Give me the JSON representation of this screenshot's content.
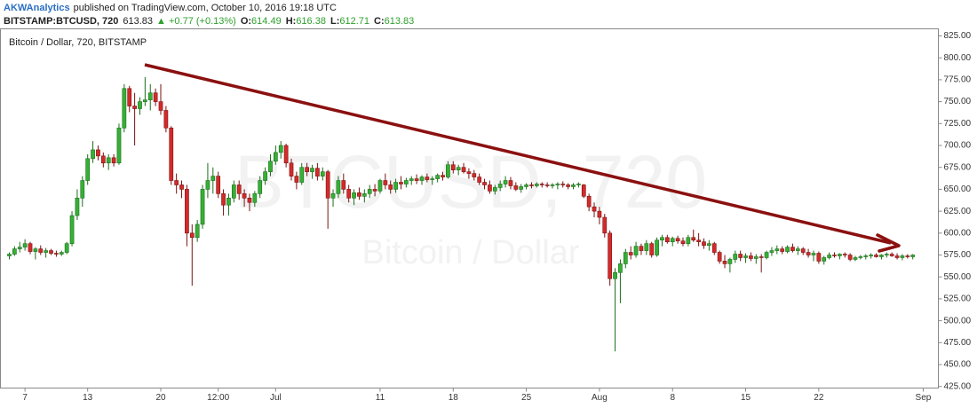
{
  "header": {
    "publisher": "AKWAnalytics",
    "published": "published on TradingView.com, October 10, 2016 19:18 UTC",
    "symbol": "BITSTAMP:BTCUSD, 720",
    "last": "613.83",
    "change": "▲ +0.77 (+0.13%)",
    "open_label": "O:",
    "open": "614.49",
    "high_label": "H:",
    "high": "616.38",
    "low_label": "L:",
    "low": "612.71",
    "close_label": "C:",
    "close": "613.83"
  },
  "chart_data": {
    "type": "candlestick",
    "title": "Bitcoin / Dollar, 720, BITSTAMP",
    "watermark": "BTCUSD, 720",
    "watermark_subtitle": "Bitcoin / Dollar",
    "up_color": "#35b035",
    "up_border": "#1c6e1c",
    "down_color": "#d42a2a",
    "down_border": "#7a1212",
    "ylim": [
      423.2,
      833.1
    ],
    "xlim": [
      -1.7,
      177.9
    ],
    "grid": false,
    "yticks": [
      {
        "value": 425,
        "label": "425.00"
      },
      {
        "value": 450,
        "label": "450.00"
      },
      {
        "value": 475,
        "label": "475.00"
      },
      {
        "value": 500,
        "label": "500.00"
      },
      {
        "value": 525,
        "label": "525.00"
      },
      {
        "value": 550,
        "label": "550.00"
      },
      {
        "value": 575,
        "label": "575.00"
      },
      {
        "value": 600,
        "label": "600.00"
      },
      {
        "value": 625,
        "label": "625.00"
      },
      {
        "value": 650,
        "label": "650.00"
      },
      {
        "value": 675,
        "label": "675.00"
      },
      {
        "value": 700,
        "label": "700.00"
      },
      {
        "value": 725,
        "label": "725.00"
      },
      {
        "value": 750,
        "label": "750.00"
      },
      {
        "value": 775,
        "label": "775.00"
      },
      {
        "value": 800,
        "label": "800.00"
      },
      {
        "value": 825,
        "label": "825.00"
      }
    ],
    "xticks": [
      {
        "value": 3,
        "label": "7"
      },
      {
        "value": 15,
        "label": "13"
      },
      {
        "value": 29,
        "label": "20"
      },
      {
        "value": 40,
        "label": "12:00"
      },
      {
        "value": 51,
        "label": "Jul"
      },
      {
        "value": 71,
        "label": "11"
      },
      {
        "value": 85,
        "label": "18"
      },
      {
        "value": 99,
        "label": "25"
      },
      {
        "value": 113,
        "label": "Aug"
      },
      {
        "value": 127,
        "label": "8"
      },
      {
        "value": 141,
        "label": "15"
      },
      {
        "value": 155,
        "label": "22"
      },
      {
        "value": 175,
        "label": "Sep"
      }
    ],
    "ohlc": [
      [
        574,
        578,
        570,
        576
      ],
      [
        576,
        585,
        574,
        582
      ],
      [
        582,
        590,
        578,
        584
      ],
      [
        584,
        593,
        580,
        588
      ],
      [
        588,
        590,
        576,
        579
      ],
      [
        579,
        584,
        570,
        582
      ],
      [
        582,
        586,
        575,
        578
      ],
      [
        578,
        583,
        572,
        580
      ],
      [
        580,
        582,
        575,
        577
      ],
      [
        577,
        580,
        573,
        576
      ],
      [
        576,
        580,
        574,
        578
      ],
      [
        578,
        590,
        576,
        588
      ],
      [
        588,
        625,
        585,
        620
      ],
      [
        620,
        650,
        615,
        640
      ],
      [
        640,
        665,
        630,
        660
      ],
      [
        660,
        690,
        655,
        685
      ],
      [
        685,
        705,
        680,
        695
      ],
      [
        695,
        700,
        683,
        688
      ],
      [
        688,
        692,
        675,
        680
      ],
      [
        680,
        690,
        672,
        686
      ],
      [
        686,
        690,
        676,
        680
      ],
      [
        680,
        725,
        678,
        720
      ],
      [
        720,
        770,
        715,
        765
      ],
      [
        765,
        768,
        738,
        745
      ],
      [
        745,
        760,
        700,
        742
      ],
      [
        742,
        755,
        735,
        750
      ],
      [
        750,
        778,
        745,
        752
      ],
      [
        752,
        770,
        740,
        760
      ],
      [
        760,
        765,
        745,
        750
      ],
      [
        750,
        770,
        735,
        740
      ],
      [
        740,
        745,
        715,
        720
      ],
      [
        720,
        722,
        655,
        660
      ],
      [
        660,
        668,
        645,
        655
      ],
      [
        655,
        660,
        640,
        650
      ],
      [
        650,
        655,
        585,
        600
      ],
      [
        600,
        610,
        540,
        595
      ],
      [
        595,
        615,
        590,
        610
      ],
      [
        610,
        655,
        605,
        650
      ],
      [
        650,
        680,
        640,
        660
      ],
      [
        660,
        675,
        645,
        665
      ],
      [
        665,
        670,
        640,
        645
      ],
      [
        645,
        650,
        620,
        632
      ],
      [
        632,
        645,
        620,
        640
      ],
      [
        640,
        660,
        635,
        655
      ],
      [
        655,
        660,
        638,
        645
      ],
      [
        645,
        650,
        630,
        640
      ],
      [
        640,
        645,
        625,
        635
      ],
      [
        635,
        648,
        630,
        645
      ],
      [
        645,
        665,
        640,
        660
      ],
      [
        660,
        675,
        655,
        670
      ],
      [
        670,
        690,
        665,
        682
      ],
      [
        682,
        700,
        678,
        692
      ],
      [
        692,
        705,
        685,
        700
      ],
      [
        700,
        702,
        675,
        680
      ],
      [
        680,
        685,
        660,
        665
      ],
      [
        665,
        670,
        650,
        658
      ],
      [
        658,
        680,
        655,
        675
      ],
      [
        675,
        680,
        665,
        670
      ],
      [
        670,
        678,
        662,
        674
      ],
      [
        674,
        680,
        660,
        665
      ],
      [
        665,
        675,
        660,
        670
      ],
      [
        670,
        672,
        605,
        640
      ],
      [
        640,
        650,
        630,
        645
      ],
      [
        645,
        665,
        640,
        660
      ],
      [
        660,
        668,
        645,
        650
      ],
      [
        650,
        655,
        635,
        640
      ],
      [
        640,
        650,
        632,
        646
      ],
      [
        646,
        652,
        638,
        642
      ],
      [
        642,
        650,
        635,
        645
      ],
      [
        645,
        655,
        640,
        650
      ],
      [
        650,
        656,
        642,
        648
      ],
      [
        648,
        662,
        645,
        660
      ],
      [
        660,
        668,
        650,
        655
      ],
      [
        655,
        660,
        645,
        650
      ],
      [
        650,
        662,
        646,
        658
      ],
      [
        658,
        665,
        650,
        656
      ],
      [
        656,
        663,
        652,
        660
      ],
      [
        660,
        665,
        655,
        662
      ],
      [
        662,
        667,
        656,
        660
      ],
      [
        660,
        666,
        655,
        664
      ],
      [
        664,
        668,
        658,
        661
      ],
      [
        661,
        665,
        655,
        662
      ],
      [
        662,
        668,
        658,
        666
      ],
      [
        666,
        670,
        660,
        664
      ],
      [
        664,
        682,
        662,
        678
      ],
      [
        678,
        682,
        668,
        672
      ],
      [
        672,
        678,
        666,
        675
      ],
      [
        675,
        680,
        668,
        670
      ],
      [
        670,
        674,
        662,
        668
      ],
      [
        668,
        672,
        660,
        664
      ],
      [
        664,
        668,
        655,
        658
      ],
      [
        658,
        662,
        650,
        655
      ],
      [
        655,
        660,
        645,
        648
      ],
      [
        648,
        655,
        644,
        652
      ],
      [
        652,
        660,
        648,
        656
      ],
      [
        656,
        665,
        652,
        660
      ],
      [
        660,
        664,
        650,
        654
      ],
      [
        654,
        658,
        648,
        650
      ],
      [
        650,
        656,
        646,
        653
      ],
      [
        653,
        657,
        650,
        655
      ],
      [
        655,
        658,
        651,
        654
      ],
      [
        654,
        658,
        652,
        656
      ],
      [
        656,
        658,
        652,
        655
      ],
      [
        655,
        658,
        652,
        654
      ],
      [
        654,
        657,
        651,
        655
      ],
      [
        655,
        658,
        650,
        656
      ],
      [
        656,
        659,
        652,
        655
      ],
      [
        655,
        657,
        650,
        653
      ],
      [
        653,
        657,
        650,
        655
      ],
      [
        655,
        658,
        652,
        656
      ],
      [
        655,
        656,
        640,
        642
      ],
      [
        642,
        645,
        625,
        630
      ],
      [
        630,
        635,
        618,
        625
      ],
      [
        625,
        630,
        610,
        618
      ],
      [
        618,
        622,
        595,
        600
      ],
      [
        600,
        603,
        540,
        548
      ],
      [
        548,
        560,
        465,
        555
      ],
      [
        555,
        570,
        520,
        565
      ],
      [
        565,
        582,
        560,
        578
      ],
      [
        578,
        585,
        570,
        575
      ],
      [
        575,
        590,
        572,
        585
      ],
      [
        585,
        588,
        575,
        580
      ],
      [
        580,
        592,
        575,
        588
      ],
      [
        588,
        590,
        572,
        575
      ],
      [
        575,
        595,
        573,
        592
      ],
      [
        592,
        598,
        585,
        595
      ],
      [
        595,
        598,
        588,
        590
      ],
      [
        590,
        596,
        585,
        594
      ],
      [
        594,
        597,
        588,
        591
      ],
      [
        591,
        595,
        585,
        588
      ],
      [
        588,
        598,
        585,
        595
      ],
      [
        595,
        604,
        590,
        592
      ],
      [
        592,
        600,
        585,
        590
      ],
      [
        590,
        594,
        582,
        586
      ],
      [
        586,
        592,
        580,
        588
      ],
      [
        588,
        590,
        575,
        578
      ],
      [
        578,
        580,
        565,
        568
      ],
      [
        568,
        575,
        560,
        565
      ],
      [
        565,
        572,
        555,
        570
      ],
      [
        570,
        580,
        566,
        576
      ],
      [
        576,
        580,
        568,
        572
      ],
      [
        572,
        577,
        566,
        574
      ],
      [
        574,
        578,
        568,
        571
      ],
      [
        571,
        576,
        565,
        573
      ],
      [
        573,
        576,
        555,
        572
      ],
      [
        572,
        580,
        570,
        578
      ],
      [
        578,
        584,
        574,
        580
      ],
      [
        580,
        586,
        576,
        582
      ],
      [
        582,
        585,
        576,
        579
      ],
      [
        579,
        586,
        577,
        584
      ],
      [
        584,
        588,
        578,
        580
      ],
      [
        580,
        585,
        575,
        582
      ],
      [
        582,
        584,
        575,
        578
      ],
      [
        578,
        582,
        572,
        575
      ],
      [
        575,
        580,
        568,
        577
      ],
      [
        577,
        579,
        565,
        568
      ],
      [
        568,
        574,
        564,
        572
      ],
      [
        572,
        578,
        570,
        575
      ],
      [
        575,
        578,
        572,
        574
      ],
      [
        574,
        577,
        570,
        576
      ],
      [
        576,
        578,
        572,
        575
      ],
      [
        575,
        577,
        568,
        570
      ],
      [
        570,
        574,
        568,
        572
      ],
      [
        572,
        575,
        570,
        573
      ],
      [
        573,
        576,
        570,
        574
      ],
      [
        574,
        577,
        571,
        575
      ],
      [
        575,
        577,
        572,
        573
      ],
      [
        573,
        576,
        570,
        575
      ],
      [
        575,
        578,
        572,
        576
      ],
      [
        576,
        578,
        573,
        574
      ],
      [
        574,
        577,
        570,
        572
      ],
      [
        572,
        576,
        569,
        574
      ],
      [
        574,
        576,
        571,
        573
      ],
      [
        573,
        576,
        570,
        575
      ]
    ]
  }
}
